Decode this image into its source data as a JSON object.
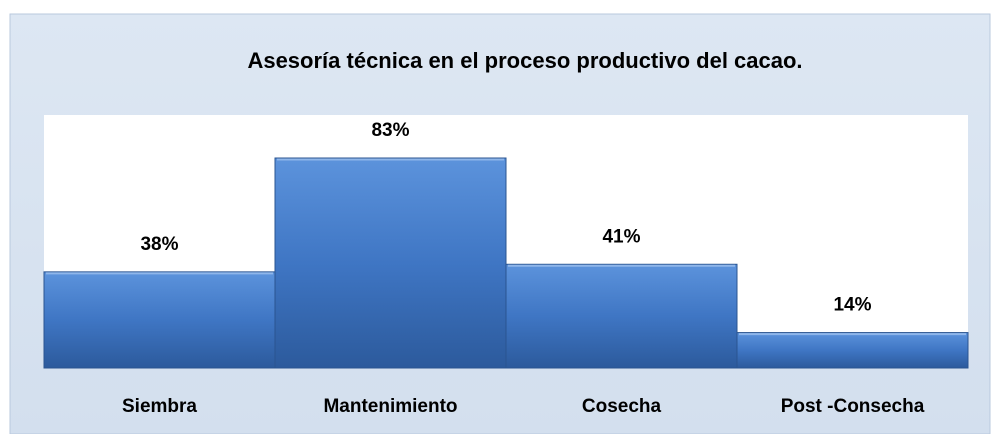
{
  "chart_data": {
    "type": "bar",
    "title": "Asesoría técnica en el proceso productivo del cacao.",
    "categories": [
      "Siembra",
      "Mantenimiento",
      "Cosecha",
      "Post -Consecha"
    ],
    "values": [
      38,
      83,
      41,
      14
    ],
    "value_labels": [
      "38%",
      "83%",
      "41%",
      "14%"
    ],
    "color": "#3f76c4",
    "ylim": [
      0,
      100
    ]
  }
}
